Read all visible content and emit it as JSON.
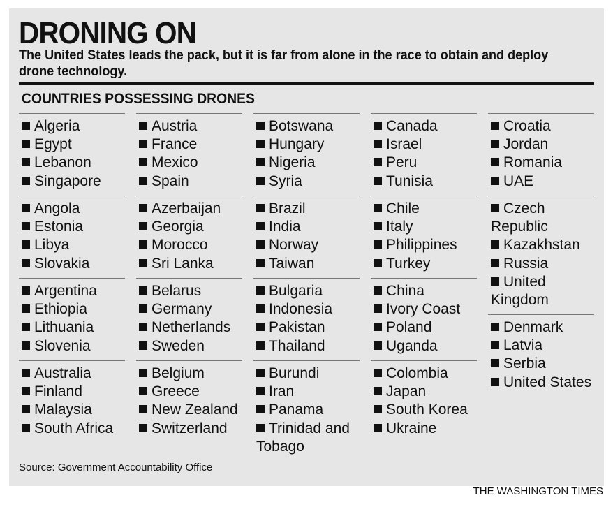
{
  "header": {
    "title": "DRONING ON",
    "subtitle": "The United States leads the pack, but it is far from alone in the race to obtain and deploy drone technology."
  },
  "section_heading": "COUNTRIES POSSESSING DRONES",
  "columns": [
    {
      "groups": [
        [
          "Algeria",
          "Egypt",
          "Lebanon",
          "Singapore"
        ],
        [
          "Angola",
          "Estonia",
          "Libya",
          "Slovakia"
        ],
        [
          "Argentina",
          "Ethiopia",
          "Lithuania",
          "Slovenia"
        ],
        [
          "Australia",
          "Finland",
          "Malaysia",
          "South Africa"
        ]
      ]
    },
    {
      "groups": [
        [
          "Austria",
          "France",
          "Mexico",
          "Spain"
        ],
        [
          "Azerbaijan",
          "Georgia",
          "Morocco",
          "Sri Lanka"
        ],
        [
          "Belarus",
          "Germany",
          "Netherlands",
          "Sweden"
        ],
        [
          "Belgium",
          "Greece",
          "New Zealand",
          "Switzerland"
        ]
      ]
    },
    {
      "groups": [
        [
          "Botswana",
          "Hungary",
          "Nigeria",
          "Syria"
        ],
        [
          "Brazil",
          "India",
          "Norway",
          "Taiwan"
        ],
        [
          "Bulgaria",
          "Indonesia",
          "Pakistan",
          "Thailand"
        ],
        [
          "Burundi",
          "Iran",
          "Panama",
          "Trinidad and Tobago"
        ]
      ]
    },
    {
      "groups": [
        [
          "Canada",
          "Israel",
          "Peru",
          "Tunisia"
        ],
        [
          "Chile",
          "Italy",
          "Philippines",
          "Turkey"
        ],
        [
          "China",
          "Ivory Coast",
          "Poland",
          "Uganda"
        ],
        [
          "Colombia",
          "Japan",
          "South Korea",
          "Ukraine"
        ]
      ]
    },
    {
      "groups": [
        [
          "Croatia",
          "Jordan",
          "Romania",
          "UAE"
        ],
        [
          "Czech Republic",
          "Kazakhstan",
          "Russia",
          "United Kingdom"
        ],
        [
          "Denmark",
          "Latvia",
          "Serbia",
          "United States"
        ]
      ]
    }
  ],
  "source": "Source: Government Accountability Office",
  "credit": "THE WASHINGTON TIMES"
}
